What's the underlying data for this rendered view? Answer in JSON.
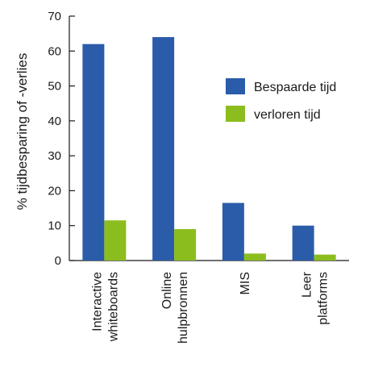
{
  "chart_data": {
    "type": "bar",
    "title": "",
    "xlabel": "",
    "ylabel": "% tijdbesparing of -verlies",
    "ylim": [
      0,
      70
    ],
    "yticks": [
      0,
      10,
      20,
      30,
      40,
      50,
      60,
      70
    ],
    "categories": [
      [
        "Interactive",
        "whiteboards"
      ],
      [
        "Online",
        "hulpbronnen"
      ],
      [
        "MIS"
      ],
      [
        "Leer",
        "platforms"
      ]
    ],
    "series": [
      {
        "name": "Bespaarde tijd",
        "color": "#2a5caa",
        "values": [
          62,
          64,
          16.5,
          10
        ]
      },
      {
        "name": "verloren tijd",
        "color": "#8cbd1e",
        "values": [
          11.5,
          9,
          2,
          1.7
        ]
      }
    ],
    "legend_position": "right",
    "grid": false
  }
}
